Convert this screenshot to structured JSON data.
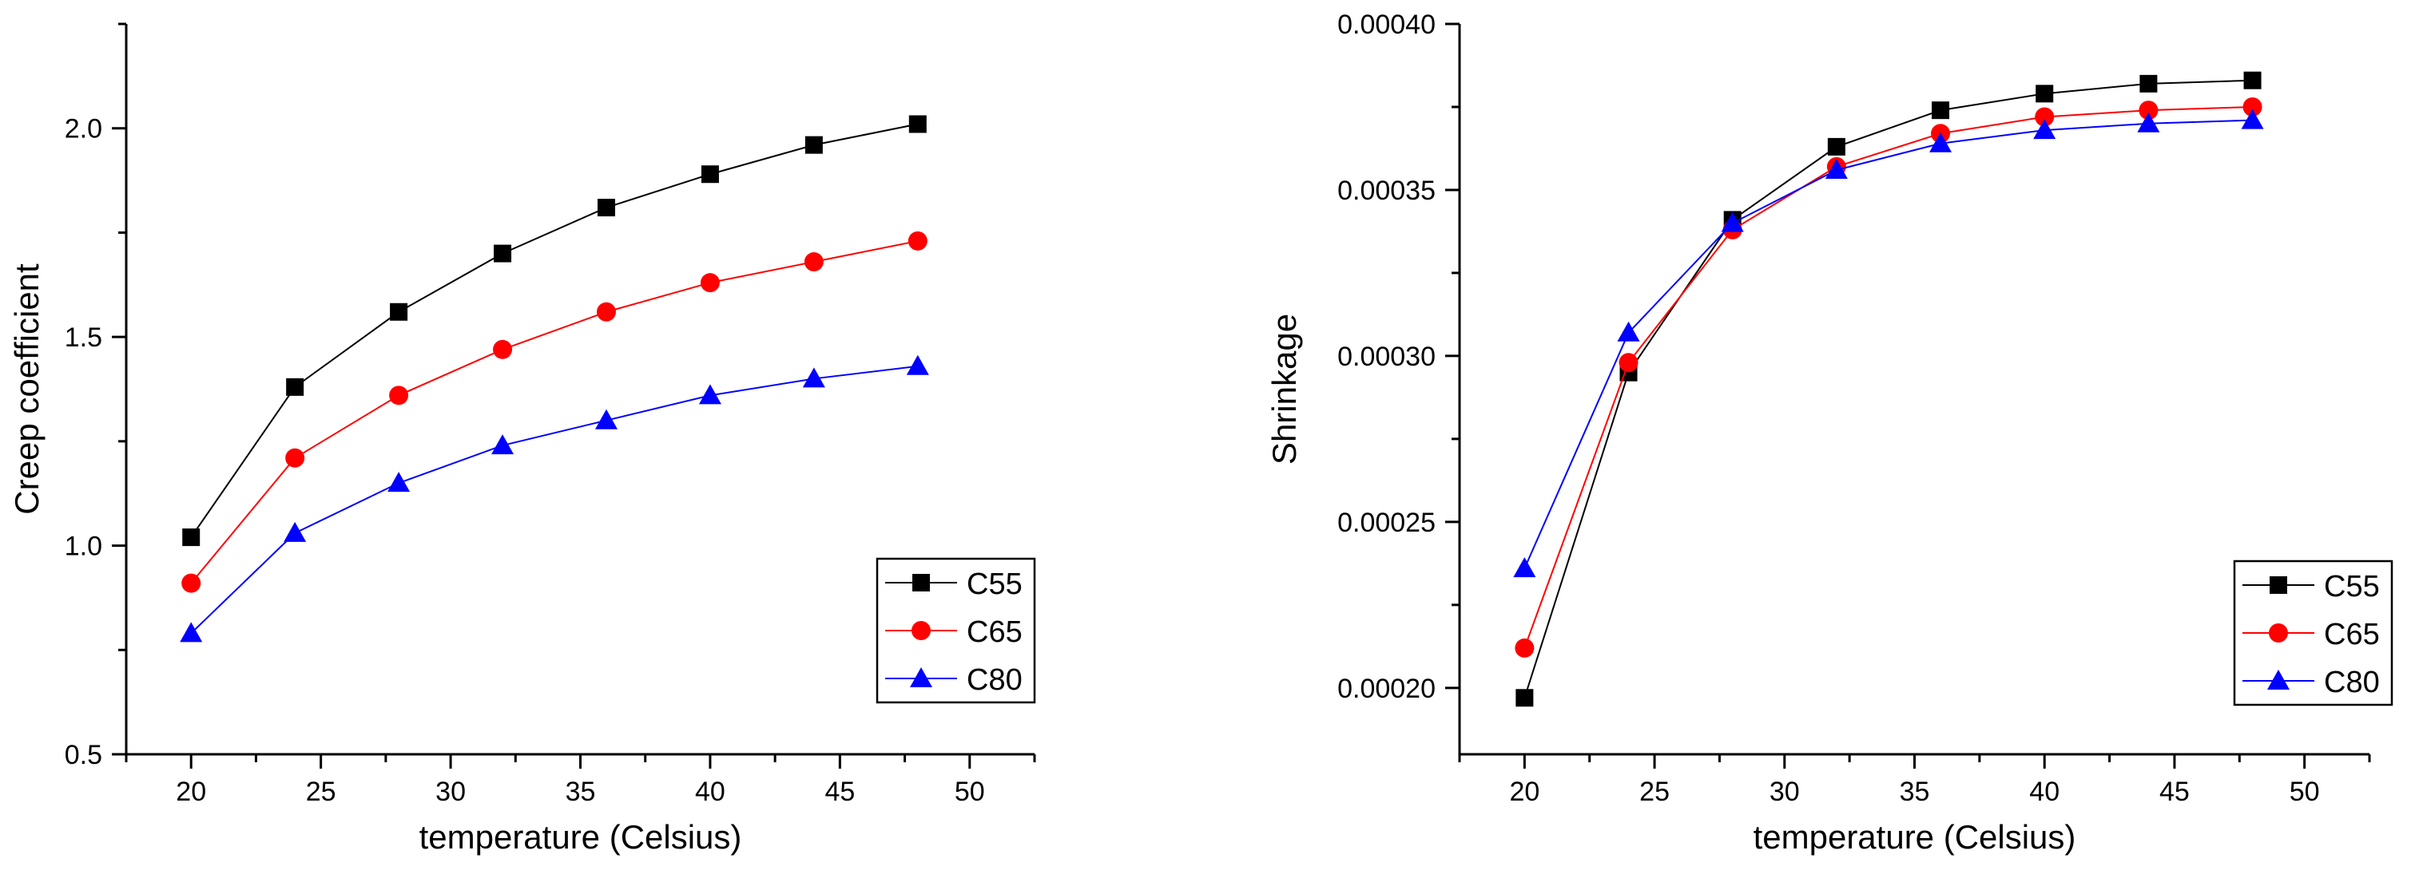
{
  "chart_data": [
    {
      "type": "line",
      "xlabel": "temperature (Celsius)",
      "ylabel": "Creep coefficient",
      "xlim": [
        17.5,
        52.5
      ],
      "ylim": [
        0.5,
        2.25
      ],
      "xticks": [
        "20",
        "25",
        "30",
        "35",
        "40",
        "45",
        "50"
      ],
      "yticks": [
        "0.5",
        "1.0",
        "1.5",
        "2.0"
      ],
      "x": [
        20,
        24,
        28,
        32,
        36,
        40,
        44,
        48
      ],
      "legend_position": "bottom-right",
      "series": [
        {
          "name": "C55",
          "color": "#000000",
          "marker": "square",
          "values": [
            1.02,
            1.38,
            1.56,
            1.7,
            1.81,
            1.89,
            1.96,
            2.01
          ]
        },
        {
          "name": "C65",
          "color": "#ff0000",
          "marker": "circle",
          "values": [
            0.91,
            1.21,
            1.36,
            1.47,
            1.56,
            1.63,
            1.68,
            1.73
          ]
        },
        {
          "name": "C80",
          "color": "#0000ff",
          "marker": "triangle",
          "values": [
            0.79,
            1.03,
            1.15,
            1.24,
            1.3,
            1.36,
            1.4,
            1.43
          ]
        }
      ]
    },
    {
      "type": "line",
      "xlabel": "temperature (Celsius)",
      "ylabel": "Shrinkage",
      "xlim": [
        17.5,
        52.5
      ],
      "ylim": [
        0.00018,
        0.0004
      ],
      "xticks": [
        "20",
        "25",
        "30",
        "35",
        "40",
        "45",
        "50"
      ],
      "yticks": [
        "0.00020",
        "0.00025",
        "0.00030",
        "0.00035",
        "0.00040"
      ],
      "x": [
        20,
        24,
        28,
        32,
        36,
        40,
        44,
        48
      ],
      "legend_position": "bottom-right",
      "series": [
        {
          "name": "C55",
          "color": "#000000",
          "marker": "square",
          "values": [
            0.000197,
            0.000295,
            0.000341,
            0.000363,
            0.000374,
            0.000379,
            0.000382,
            0.000383
          ]
        },
        {
          "name": "C65",
          "color": "#ff0000",
          "marker": "circle",
          "values": [
            0.000212,
            0.000298,
            0.000338,
            0.000357,
            0.000367,
            0.000372,
            0.000374,
            0.000375
          ]
        },
        {
          "name": "C80",
          "color": "#0000ff",
          "marker": "triangle",
          "values": [
            0.000236,
            0.000307,
            0.00034,
            0.000356,
            0.000364,
            0.000368,
            0.00037,
            0.000371
          ]
        }
      ]
    }
  ]
}
